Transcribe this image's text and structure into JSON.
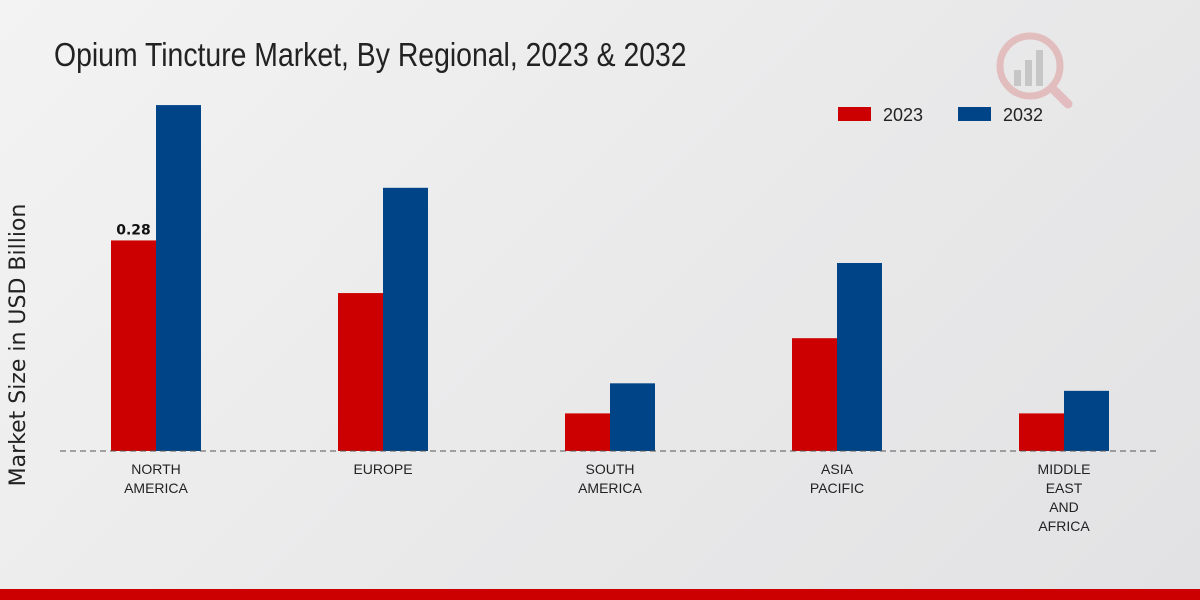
{
  "chart_data": {
    "type": "bar",
    "title": "Opium Tincture Market, By Regional, 2023 & 2032",
    "xlabel": "",
    "ylabel": "Market Size in USD Billion",
    "ylim": [
      0,
      0.5
    ],
    "grid": false,
    "legend_position": "top-right",
    "categories": [
      [
        "NORTH",
        "AMERICA"
      ],
      [
        "EUROPE"
      ],
      [
        "SOUTH",
        "AMERICA"
      ],
      [
        "ASIA",
        "PACIFIC"
      ],
      [
        "MIDDLE",
        "EAST",
        "AND",
        "AFRICA"
      ]
    ],
    "series": [
      {
        "name": "2023",
        "color": "#cc0000",
        "values": [
          0.28,
          0.21,
          0.05,
          0.15,
          0.05
        ]
      },
      {
        "name": "2032",
        "color": "#004488",
        "values": [
          0.46,
          0.35,
          0.09,
          0.25,
          0.08
        ]
      }
    ],
    "annotations": [
      {
        "series": 0,
        "category": 0,
        "text": "0.28"
      }
    ]
  }
}
